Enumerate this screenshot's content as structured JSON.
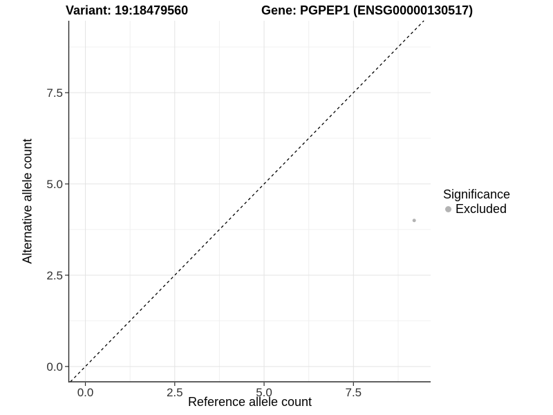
{
  "chart_data": {
    "type": "scatter",
    "titles": [
      "Variant: 19:18479560",
      "Gene: PGPEP1 (ENSG00000130517)"
    ],
    "xlabel": "Reference allele count",
    "ylabel": "Alternative allele count",
    "x_ticks": [
      0.0,
      2.5,
      5.0,
      7.5
    ],
    "y_ticks": [
      0.0,
      2.5,
      5.0,
      7.5
    ],
    "minor_step": 1.25,
    "xlim": [
      -0.455,
      9.66
    ],
    "ylim": [
      -0.42,
      9.47
    ],
    "grid": true,
    "reference_line": {
      "type": "identity y=x",
      "style": "dashed",
      "color": "#000000"
    },
    "series": [
      {
        "name": "Excluded",
        "color": "#b3b3b3",
        "points": [
          [
            9.2,
            4.0
          ]
        ]
      }
    ],
    "legend": {
      "title": "Significance",
      "position": "right",
      "items": [
        {
          "label": "Excluded",
          "color": "#b3b3b3"
        }
      ]
    },
    "colors": {
      "major_grid": "#e3e3e3",
      "minor_grid": "#f0f0f0",
      "axis_line": "#2a2a2a",
      "tick_label": "#303030",
      "point": "#b3b3b3"
    }
  }
}
